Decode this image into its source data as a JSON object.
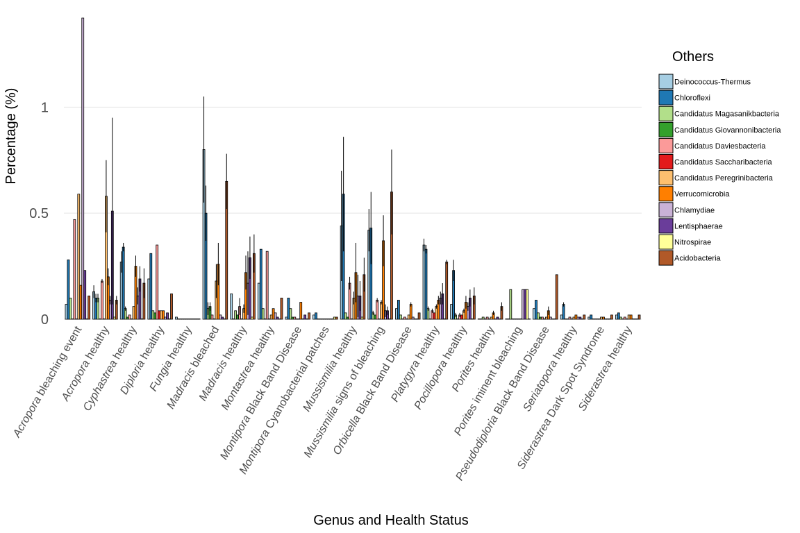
{
  "chart_data": {
    "type": "bar",
    "title": "",
    "xlabel": "Genus and Health Status",
    "ylabel": "Percentage (%)",
    "ylim": [
      0,
      1.42
    ],
    "yticks": [
      0,
      0.5,
      1
    ],
    "ytick_labels": [
      "0",
      "0.5",
      "1"
    ],
    "grid": true,
    "legend": {
      "title": "Others",
      "placement": "right"
    },
    "categories": [
      {
        "genus": "Acropora",
        "status": " bleaching event"
      },
      {
        "genus": "Acropora",
        "status": " healthy"
      },
      {
        "genus": "Cyphastrea",
        "status": " healthy"
      },
      {
        "genus": "Diploria",
        "status": " healthy"
      },
      {
        "genus": "Fungia",
        "status": " healthy"
      },
      {
        "genus": "Madracis",
        "status": " bleached"
      },
      {
        "genus": "Madracis",
        "status": " healthy"
      },
      {
        "genus": "Montastrea",
        "status": " healthy"
      },
      {
        "genus": "Montipora",
        "status": " Black Band Disease"
      },
      {
        "genus": "Montipora",
        "status": " Cyanobacterial patches"
      },
      {
        "genus": "Mussismilia",
        "status": " healthy"
      },
      {
        "genus": "Mussismilia",
        "status": " signs of bleaching"
      },
      {
        "genus": "Orbicella",
        "status": " Black Band Disease"
      },
      {
        "genus": "Platygyra",
        "status": " healthy"
      },
      {
        "genus": "Pocillopora",
        "status": " healthy"
      },
      {
        "genus": "Porites",
        "status": " healthy"
      },
      {
        "genus": "Porites",
        "status": " iminent bleaching"
      },
      {
        "genus": "Pseudodiploria",
        "status": " Black Band Disease"
      },
      {
        "genus": "Seriatopora",
        "status": " healthy"
      },
      {
        "genus": "Siderastrea",
        "status": " Dark Spot Syndrome"
      },
      {
        "genus": "Siderastrea",
        "status": " healthy"
      }
    ],
    "series": [
      {
        "name": "Deinococcus-Thermus",
        "color": "#A6CEE3",
        "values": [
          0.07,
          0.13,
          0.27,
          0.19,
          0.01,
          0.8,
          0.12,
          0.17,
          0.01,
          0.02,
          0.44,
          0.42,
          0.05,
          0.35,
          0.07,
          0.0,
          0.0,
          0.05,
          0.02,
          0.01,
          0.02
        ],
        "errors": [
          0,
          0.03,
          0.05,
          0,
          0,
          0.25,
          0,
          0,
          0,
          0,
          0.26,
          0.1,
          0,
          0.03,
          0,
          0,
          0,
          0,
          0,
          0,
          0
        ]
      },
      {
        "name": "Chloroflexi",
        "color": "#1F78B4",
        "values": [
          0.28,
          0.1,
          0.34,
          0.31,
          0.0,
          0.5,
          0.0,
          0.33,
          0.1,
          0.03,
          0.59,
          0.43,
          0.09,
          0.33,
          0.23,
          0.0,
          0.0,
          0.09,
          0.07,
          0.02,
          0.03
        ],
        "errors": [
          0,
          0.02,
          0.02,
          0,
          0,
          0.13,
          0,
          0,
          0,
          0,
          0.27,
          0.17,
          0,
          0.02,
          0.05,
          0,
          0,
          0,
          0.01,
          0,
          0
        ]
      },
      {
        "name": "Candidatus Magasanikbacteria",
        "color": "#B2DF8A",
        "values": [
          0.1,
          0.1,
          0.05,
          0.04,
          0.0,
          0.05,
          0.04,
          0.05,
          0.05,
          0.0,
          0.03,
          0.03,
          0.02,
          0.05,
          0.02,
          0.01,
          0.14,
          0.03,
          0.0,
          0.0,
          0.01
        ],
        "errors": [
          0,
          0.02,
          0.01,
          0,
          0,
          0.03,
          0,
          0,
          0,
          0,
          0,
          0.01,
          0,
          0.01,
          0.01,
          0,
          0,
          0,
          0,
          0,
          0
        ]
      },
      {
        "name": "Candidatus Giovannonibacteria",
        "color": "#33A02C",
        "values": [
          0.0,
          0.0,
          0.01,
          0.03,
          0.0,
          0.06,
          0.02,
          0.0,
          0.01,
          0.0,
          0.01,
          0.02,
          0.0,
          0.0,
          0.0,
          0.0,
          0.0,
          0.01,
          0.0,
          0.0,
          0.0
        ],
        "errors": [
          0,
          0,
          0,
          0,
          0,
          0.02,
          0,
          0,
          0,
          0,
          0,
          0,
          0,
          0,
          0,
          0,
          0,
          0,
          0,
          0,
          0
        ]
      },
      {
        "name": "Candidatus Daviesbacteria",
        "color": "#FB9A99",
        "values": [
          0.47,
          0.18,
          0.02,
          0.35,
          0.0,
          0.02,
          0.06,
          0.32,
          0.01,
          0.0,
          0.17,
          0.09,
          0.01,
          0.04,
          0.02,
          0.01,
          0.0,
          0.01,
          0.01,
          0.0,
          0.01
        ],
        "errors": [
          0,
          0.01,
          0,
          0,
          0,
          0,
          0.04,
          0,
          0,
          0,
          0.03,
          0.01,
          0,
          0.01,
          0.01,
          0,
          0,
          0,
          0,
          0,
          0
        ]
      },
      {
        "name": "Candidatus Saccharibacteria",
        "color": "#E31A1C",
        "values": [
          0.0,
          0.0,
          0.0,
          0.04,
          0.0,
          0.0,
          0.0,
          0.0,
          0.0,
          0.0,
          0.0,
          0.0,
          0.0,
          0.03,
          0.02,
          0.0,
          0.0,
          0.0,
          0.0,
          0.0,
          0.0
        ],
        "errors": [
          0,
          0,
          0,
          0,
          0,
          0,
          0,
          0,
          0,
          0,
          0,
          0,
          0,
          0,
          0,
          0,
          0,
          0,
          0,
          0,
          0
        ]
      },
      {
        "name": "Candidatus Peregrinibacteria",
        "color": "#FDBF6F",
        "values": [
          0.59,
          0.58,
          0.06,
          0.04,
          0.0,
          0.18,
          0.05,
          0.02,
          0.0,
          0.0,
          0.1,
          0.08,
          0.02,
          0.06,
          0.04,
          0.01,
          0.0,
          0.01,
          0.01,
          0.01,
          0.02
        ],
        "errors": [
          0,
          0.17,
          0,
          0,
          0,
          0.08,
          0.02,
          0,
          0,
          0,
          0.03,
          0.01,
          0,
          0.01,
          0.01,
          0,
          0,
          0,
          0,
          0,
          0
        ]
      },
      {
        "name": "Verrucomicrobia",
        "color": "#FF7F00",
        "values": [
          0.16,
          0.2,
          0.25,
          0.04,
          0.0,
          0.26,
          0.22,
          0.05,
          0.08,
          0.0,
          0.22,
          0.37,
          0.07,
          0.09,
          0.08,
          0.03,
          0.0,
          0.04,
          0.02,
          0.01,
          0.02
        ],
        "errors": [
          0,
          0.04,
          0.05,
          0,
          0,
          0.1,
          0.08,
          0,
          0,
          0,
          0.14,
          0.12,
          0.01,
          0.02,
          0.03,
          0.01,
          0,
          0.02,
          0,
          0,
          0
        ]
      },
      {
        "name": "Chlamydiae",
        "color": "#CAB2D6",
        "values": [
          1.42,
          0.09,
          0.11,
          0.01,
          0.0,
          0.02,
          0.17,
          0.03,
          0.0,
          0.0,
          0.11,
          0.04,
          0.01,
          0.1,
          0.06,
          0.0,
          0.14,
          0.01,
          0.01,
          0.0,
          0.0
        ],
        "errors": [
          0,
          0.02,
          0.04,
          0,
          0,
          0,
          0.15,
          0,
          0,
          0,
          0.1,
          0.03,
          0,
          0.03,
          0.02,
          0,
          0,
          0,
          0,
          0,
          0
        ]
      },
      {
        "name": "Lentisphaerae",
        "color": "#6A3D9A",
        "values": [
          0.23,
          0.51,
          0.19,
          0.03,
          0.0,
          0.01,
          0.29,
          0.01,
          0.02,
          0.0,
          0.11,
          0.04,
          0.0,
          0.12,
          0.1,
          0.01,
          0.14,
          0.0,
          0.01,
          0.0,
          0.0
        ],
        "errors": [
          0,
          0.44,
          0.06,
          0,
          0,
          0,
          0.1,
          0,
          0,
          0,
          0.07,
          0.02,
          0,
          0.05,
          0.04,
          0,
          0,
          0,
          0,
          0,
          0
        ]
      },
      {
        "name": "Nitrospirae",
        "color": "#FFFF99",
        "values": [
          0.0,
          0.01,
          0.0,
          0.0,
          0.0,
          0.0,
          0.01,
          0.0,
          0.0,
          0.01,
          0.01,
          0.0,
          0.0,
          0.0,
          0.0,
          0.0,
          0.14,
          0.0,
          0.0,
          0.0,
          0.0
        ],
        "errors": [
          0,
          0,
          0,
          0,
          0,
          0,
          0,
          0,
          0,
          0,
          0,
          0,
          0,
          0,
          0,
          0,
          0,
          0,
          0,
          0,
          0
        ]
      },
      {
        "name": "Acidobacteria",
        "color": "#B15928",
        "values": [
          0.11,
          0.09,
          0.17,
          0.12,
          0.0,
          0.65,
          0.31,
          0.1,
          0.03,
          0.01,
          0.21,
          0.6,
          0.03,
          0.27,
          0.11,
          0.06,
          0.0,
          0.21,
          0.02,
          0.02,
          0.02
        ],
        "errors": [
          0,
          0.02,
          0.07,
          0,
          0,
          0.13,
          0.09,
          0,
          0,
          0,
          0.08,
          0.2,
          0,
          0.01,
          0.04,
          0.02,
          0,
          0,
          0,
          0,
          0
        ]
      }
    ]
  }
}
